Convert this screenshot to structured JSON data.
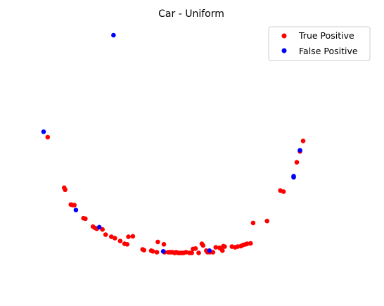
{
  "chart_data": {
    "type": "scatter",
    "title": "Car - Uniform",
    "xlabel": "",
    "ylabel": "",
    "xlim": [
      0,
      100
    ],
    "ylim": [
      0,
      100
    ],
    "axes_visible": false,
    "grid": false,
    "legend_position": "top-right",
    "series": [
      {
        "name": "True Positive",
        "color": "#ff0000",
        "points": [
          [
            1.3,
            56.6
          ],
          [
            6.5,
            35.1
          ],
          [
            6.8,
            34.2
          ],
          [
            8.6,
            27.9
          ],
          [
            9.2,
            27.7
          ],
          [
            9.7,
            27.7
          ],
          [
            12.6,
            22.1
          ],
          [
            13.2,
            21.9
          ],
          [
            15.6,
            18.5
          ],
          [
            16.3,
            17.9
          ],
          [
            16.8,
            17.6
          ],
          [
            18.6,
            17.3
          ],
          [
            19.6,
            15.1
          ],
          [
            21.4,
            14.2
          ],
          [
            22.5,
            13.6
          ],
          [
            24.2,
            12.4
          ],
          [
            25.6,
            11.2
          ],
          [
            26.4,
            11.0
          ],
          [
            26.8,
            14.2
          ],
          [
            28.2,
            14.4
          ],
          [
            31.3,
            8.8
          ],
          [
            31.7,
            8.5
          ],
          [
            34.0,
            8.3
          ],
          [
            34.5,
            8.0
          ],
          [
            35.8,
            7.6
          ],
          [
            36.1,
            12.0
          ],
          [
            38.0,
            11.0
          ],
          [
            38.2,
            7.6
          ],
          [
            39.4,
            7.6
          ],
          [
            40.0,
            7.6
          ],
          [
            40.7,
            7.6
          ],
          [
            41.4,
            7.3
          ],
          [
            41.9,
            7.6
          ],
          [
            42.5,
            7.3
          ],
          [
            43.0,
            7.3
          ],
          [
            43.6,
            7.3
          ],
          [
            44.2,
            7.3
          ],
          [
            45.0,
            7.6
          ],
          [
            46.1,
            7.3
          ],
          [
            46.8,
            7.3
          ],
          [
            47.2,
            9.0
          ],
          [
            48.0,
            9.2
          ],
          [
            49.0,
            7.3
          ],
          [
            50.0,
            11.2
          ],
          [
            50.4,
            10.5
          ],
          [
            51.4,
            8.3
          ],
          [
            51.8,
            7.6
          ],
          [
            52.5,
            7.6
          ],
          [
            53.5,
            7.6
          ],
          [
            54.4,
            9.7
          ],
          [
            55.6,
            9.5
          ],
          [
            56.0,
            9.2
          ],
          [
            56.5,
            8.3
          ],
          [
            56.8,
            10.2
          ],
          [
            57.2,
            10.0
          ],
          [
            59.5,
            10.0
          ],
          [
            60.5,
            9.7
          ],
          [
            61.3,
            10.0
          ],
          [
            62.3,
            10.2
          ],
          [
            63.0,
            10.7
          ],
          [
            63.8,
            11.0
          ],
          [
            64.3,
            11.2
          ],
          [
            65.4,
            11.4
          ],
          [
            66.2,
            20.1
          ],
          [
            70.6,
            20.9
          ],
          [
            74.8,
            33.9
          ],
          [
            75.8,
            33.4
          ],
          [
            80.0,
            45.9
          ],
          [
            81.0,
            50.5
          ],
          [
            82.0,
            55.0
          ]
        ]
      },
      {
        "name": "False Positive",
        "color": "#0000ff",
        "points": [
          [
            0.0,
            58.9
          ],
          [
            22.1,
            100.0
          ],
          [
            10.2,
            25.6
          ],
          [
            17.6,
            18.3
          ],
          [
            37.8,
            8.0
          ],
          [
            52.4,
            8.3
          ],
          [
            79.0,
            40.0
          ],
          [
            79.0,
            39.5
          ],
          [
            81.0,
            51.0
          ]
        ]
      }
    ]
  }
}
